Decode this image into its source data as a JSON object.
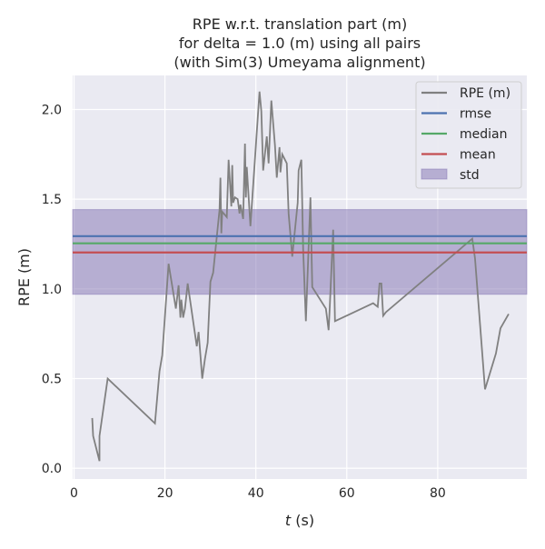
{
  "chart_data": {
    "type": "line",
    "title": [
      "RPE w.r.t. translation part (m)",
      "for delta = 1.0 (m) using all pairs",
      "(with Sim(3) Umeyama alignment)"
    ],
    "xlabel_italic": "t",
    "xlabel_rest": " (s)",
    "ylabel": "RPE (m)",
    "xlim": [
      -0.3,
      99.6
    ],
    "ylim": [
      -0.06,
      2.19
    ],
    "xticks": [
      0,
      20,
      40,
      60,
      80
    ],
    "xtick_labels": [
      "0",
      "20",
      "40",
      "60",
      "80"
    ],
    "yticks": [
      0.0,
      0.5,
      1.0,
      1.5,
      2.0
    ],
    "ytick_labels": [
      "0.0",
      "0.5",
      "1.0",
      "1.5",
      "2.0"
    ],
    "grid": true,
    "legend_position": "top-right",
    "series": [
      {
        "name": "RPE (m)",
        "color": "#808080",
        "x": [
          4,
          4.2,
          5.6,
          5.6,
          7.4,
          17.8,
          18.8,
          19.4,
          20.8,
          22.4,
          23,
          23.4,
          23.6,
          24,
          24.4,
          25,
          27,
          27.4,
          28.2,
          28.8,
          29.4,
          30,
          30.6,
          32,
          32.2,
          32.4,
          32.6,
          33.6,
          34,
          34.6,
          34.8,
          35,
          35.4,
          36,
          36.4,
          36.6,
          37.2,
          37.6,
          37.8,
          38,
          38.8,
          40.8,
          41.2,
          41.6,
          42.4,
          42.8,
          43.4,
          44.2,
          44.6,
          45.2,
          45.4,
          45.8,
          46.8,
          47.2,
          48,
          49.2,
          49.4,
          50,
          50.4,
          51,
          52,
          52.4,
          55.4,
          56,
          56.2,
          57,
          57.4,
          65.8,
          66.8,
          67.2,
          67.6,
          68,
          68.6,
          87.6,
          88.2,
          90.4,
          92.8,
          93.8,
          95.6
        ],
        "y": [
          0.28,
          0.18,
          0.04,
          0.18,
          0.5,
          0.25,
          0.54,
          0.63,
          1.14,
          0.89,
          1.02,
          0.84,
          0.94,
          0.84,
          0.89,
          1.03,
          0.68,
          0.76,
          0.5,
          0.61,
          0.7,
          1.04,
          1.09,
          1.44,
          1.62,
          1.31,
          1.43,
          1.4,
          1.72,
          1.46,
          1.69,
          1.48,
          1.51,
          1.5,
          1.42,
          1.47,
          1.39,
          1.81,
          1.51,
          1.68,
          1.35,
          2.1,
          1.99,
          1.66,
          1.85,
          1.7,
          2.05,
          1.8,
          1.62,
          1.79,
          1.65,
          1.75,
          1.7,
          1.42,
          1.18,
          1.48,
          1.66,
          1.72,
          1.22,
          0.82,
          1.51,
          1.01,
          0.89,
          0.77,
          0.87,
          1.33,
          0.82,
          0.92,
          0.9,
          1.03,
          1.03,
          0.85,
          0.87,
          1.28,
          1.17,
          0.44,
          0.64,
          0.78,
          0.86
        ]
      },
      {
        "name": "rmse",
        "color": "#4c72b0",
        "value": 1.294
      },
      {
        "name": "median",
        "color": "#55a868",
        "value": 1.254
      },
      {
        "name": "mean",
        "color": "#c44e52",
        "value": 1.203
      },
      {
        "name": "std",
        "color": "#8172b2",
        "range": [
          0.97,
          1.442
        ]
      }
    ]
  }
}
